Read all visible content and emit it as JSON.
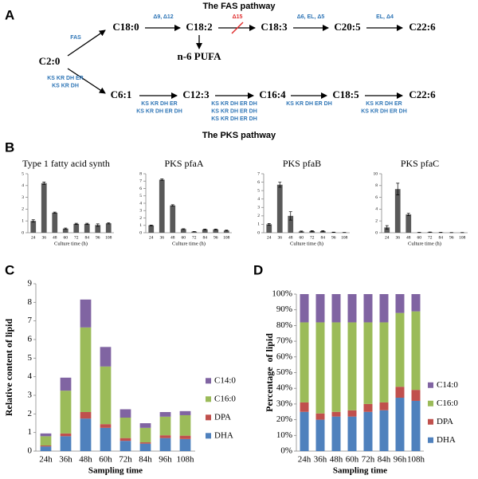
{
  "panel_labels": [
    "A",
    "B",
    "C",
    "D"
  ],
  "fas_pathway": {
    "title": "The FAS pathway",
    "nodes": [
      "C2:0",
      "C18:0",
      "C18:2",
      "C18:3",
      "C20:5",
      "C22:6",
      "n-6 PUFA",
      "C6:1",
      "C12:3",
      "C16:4",
      "C18:5",
      "C22:6"
    ],
    "edge_labels": [
      [
        "FAS"
      ],
      [
        "Δ9, Δ12"
      ],
      [
        "Δ15"
      ],
      [
        "Δ6, EL, Δ5"
      ],
      [
        "EL, Δ4"
      ],
      [
        "KS KR DH ER",
        "KS KR DH"
      ],
      [
        "KS KR DH ER",
        "KS KR DH ER DH"
      ],
      [
        "KS KR DH ER DH",
        "KS KR DH ER DH",
        "KS KR DH ER DH"
      ],
      [
        "KS KR DH ER DH"
      ],
      [
        "KS KR DH ER",
        "KS KR DH ER DH"
      ]
    ]
  },
  "pks_title": "The PKS pathway",
  "chart_data": [
    {
      "type": "bar",
      "title": "Type 1 fatty acid synth",
      "xlabel": "Culture time (h)",
      "categories": [
        "24",
        "36",
        "48",
        "60",
        "72",
        "84",
        "96",
        "108"
      ],
      "values": [
        1.0,
        4.2,
        1.7,
        0.35,
        0.75,
        0.75,
        0.65,
        0.8
      ],
      "errors": [
        0.1,
        0.1,
        0.05,
        0.05,
        0.05,
        0.05,
        0.1,
        0.05
      ],
      "color": "#595959",
      "ylim": [
        0,
        5
      ],
      "yticks": [
        0,
        1,
        2,
        3,
        4,
        5
      ]
    },
    {
      "type": "bar",
      "title": "PKS pfaA",
      "xlabel": "Culture time (h)",
      "categories": [
        "24",
        "36",
        "48",
        "60",
        "72",
        "84",
        "96",
        "108"
      ],
      "values": [
        1.0,
        7.2,
        3.7,
        0.5,
        0.15,
        0.45,
        0.45,
        0.3
      ],
      "errors": [
        0.05,
        0.1,
        0.1,
        0.05,
        0.02,
        0.05,
        0.05,
        0.05
      ],
      "color": "#595959",
      "ylim": [
        0,
        8
      ],
      "yticks": [
        0,
        1,
        2,
        3,
        4,
        5,
        6,
        7,
        8
      ]
    },
    {
      "type": "bar",
      "title": "PKS pfaB",
      "xlabel": "Culture time (h)",
      "categories": [
        "24",
        "36",
        "48",
        "60",
        "72",
        "84",
        "96",
        "108"
      ],
      "values": [
        1.0,
        5.7,
        2.0,
        0.15,
        0.2,
        0.2,
        0.05,
        0.03
      ],
      "errors": [
        0.1,
        0.3,
        0.5,
        0.05,
        0.05,
        0.05,
        0.02,
        0.01
      ],
      "color": "#595959",
      "ylim": [
        0,
        7
      ],
      "yticks": [
        0,
        1,
        2,
        3,
        4,
        5,
        6,
        7
      ]
    },
    {
      "type": "bar",
      "title": "PKS pfaC",
      "xlabel": "Culture time (h)",
      "categories": [
        "24",
        "36",
        "48",
        "60",
        "72",
        "84",
        "96",
        "108"
      ],
      "values": [
        0.9,
        7.4,
        3.1,
        0.05,
        0.1,
        0.05,
        0.02,
        0.02
      ],
      "errors": [
        0.3,
        1.0,
        0.2,
        0.02,
        0.02,
        0.02,
        0.01,
        0.01
      ],
      "color": "#595959",
      "ylim": [
        0,
        10
      ],
      "yticks": [
        0,
        2,
        4,
        6,
        8,
        10
      ]
    },
    {
      "type": "stacked_bar",
      "xlabel": "Sampling time",
      "ylabel": "Relative content of lipid",
      "categories": [
        "24h",
        "36h",
        "48h",
        "60h",
        "72h",
        "84h",
        "96h",
        "108h"
      ],
      "series": [
        {
          "name": "DHA",
          "color": "#4F81BD",
          "values": [
            0.25,
            0.8,
            1.75,
            1.25,
            0.55,
            0.4,
            0.7,
            0.65
          ]
        },
        {
          "name": "DPA",
          "color": "#C0504D",
          "values": [
            0.05,
            0.15,
            0.35,
            0.2,
            0.15,
            0.07,
            0.15,
            0.18
          ]
        },
        {
          "name": "C16:0",
          "color": "#9BBB59",
          "values": [
            0.5,
            2.3,
            4.55,
            3.1,
            1.1,
            0.78,
            1.0,
            1.1
          ]
        },
        {
          "name": "C14:0",
          "color": "#8064A2",
          "values": [
            0.15,
            0.7,
            1.5,
            1.05,
            0.45,
            0.25,
            0.25,
            0.22
          ]
        }
      ],
      "ylim": [
        0,
        9
      ],
      "yticks": [
        0,
        1,
        2,
        3,
        4,
        5,
        6,
        7,
        8,
        9
      ],
      "legend": "right"
    },
    {
      "type": "stacked_bar",
      "xlabel": "Sampling time",
      "ylabel": "Percentage  of lipid",
      "categories": [
        "24h",
        "36h",
        "48h",
        "60h",
        "72h",
        "84h",
        "96h",
        "108h"
      ],
      "series": [
        {
          "name": "DHA",
          "color": "#4F81BD",
          "values": [
            25,
            20,
            22,
            22,
            25,
            26,
            34,
            32
          ]
        },
        {
          "name": "DPA",
          "color": "#C0504D",
          "values": [
            6,
            4,
            3,
            4,
            5,
            5,
            7,
            7
          ]
        },
        {
          "name": "C16:0",
          "color": "#9BBB59",
          "values": [
            51,
            58,
            57,
            56,
            52,
            51,
            47,
            50
          ]
        },
        {
          "name": "C14:0",
          "color": "#8064A2",
          "values": [
            18,
            18,
            18,
            18,
            18,
            18,
            12,
            11
          ]
        }
      ],
      "ylim": [
        0,
        100
      ],
      "yticks": [
        {
          "value": 0,
          "label": "0%"
        },
        {
          "value": 10,
          "label": "10%"
        },
        {
          "value": 20,
          "label": "20%"
        },
        {
          "value": 30,
          "label": "30%"
        },
        {
          "value": 40,
          "label": "40%"
        },
        {
          "value": 50,
          "label": "50%"
        },
        {
          "value": 60,
          "label": "60%"
        },
        {
          "value": 70,
          "label": "70%"
        },
        {
          "value": 80,
          "label": "80%"
        },
        {
          "value": 90,
          "label": "90%"
        },
        {
          "value": 100,
          "label": "100%"
        }
      ],
      "legend": "right"
    }
  ]
}
